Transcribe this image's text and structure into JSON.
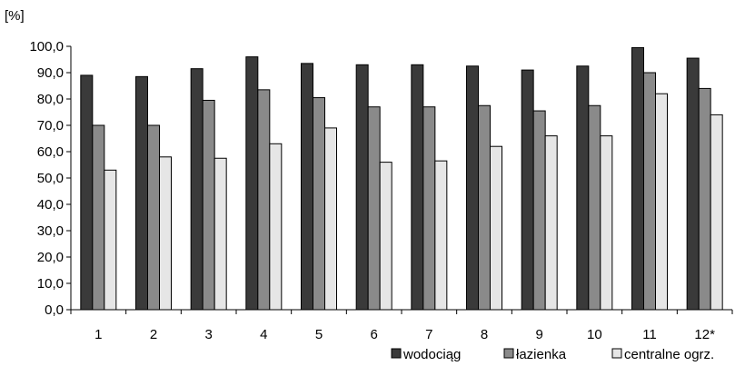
{
  "chart_data": {
    "type": "bar",
    "ylabel": "[%]",
    "xlabel": "",
    "ylim": [
      0,
      100
    ],
    "yticks": [
      "0,0",
      "10,0",
      "20,0",
      "30,0",
      "40,0",
      "50,0",
      "60,0",
      "70,0",
      "80,0",
      "90,0",
      "100,0"
    ],
    "categories": [
      "1",
      "2",
      "3",
      "4",
      "5",
      "6",
      "7",
      "8",
      "9",
      "10",
      "11",
      "12*"
    ],
    "series": [
      {
        "name": "wodociąg",
        "color": "#3a3a3a",
        "values": [
          89.0,
          88.5,
          91.5,
          96.0,
          93.5,
          93.0,
          93.0,
          92.5,
          91.0,
          92.5,
          99.5,
          95.5
        ]
      },
      {
        "name": "łazienka",
        "color": "#8a8a8a",
        "values": [
          70.0,
          70.0,
          79.5,
          83.5,
          80.5,
          77.0,
          77.0,
          77.5,
          75.5,
          77.5,
          90.0,
          84.0
        ]
      },
      {
        "name": "centralne ogrz.",
        "color": "#e6e6e6",
        "values": [
          53.0,
          58.0,
          57.5,
          63.0,
          69.0,
          56.0,
          56.5,
          62.0,
          66.0,
          66.0,
          82.0,
          74.0
        ]
      }
    ],
    "legend_position": "bottom-right",
    "grid": false
  }
}
